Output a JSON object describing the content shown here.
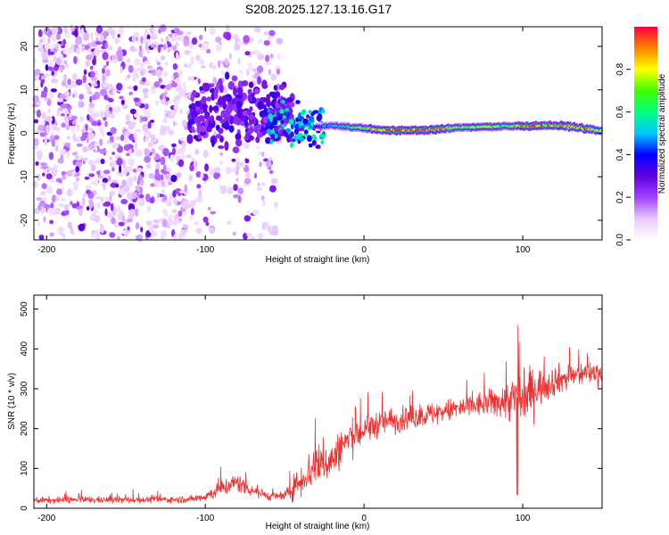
{
  "title": "S208.2025.127.13.16.G17",
  "chart_data": [
    {
      "type": "heatmap",
      "xlabel": "Height of straight line (km)",
      "ylabel": "Frequency (Hz)",
      "xlim": [
        -208,
        150
      ],
      "ylim": [
        -24.5,
        24.5
      ],
      "xticks": [
        -200,
        -100,
        0,
        100
      ],
      "yticks": [
        -20,
        -10,
        0,
        10,
        20
      ],
      "colorbar": {
        "label": "Normalized spectral amplitude",
        "range": [
          0,
          1
        ],
        "ticks": [
          0.0,
          0.2,
          0.4,
          0.6,
          0.8
        ],
        "colors": [
          "#ffffff",
          "#e8c8ff",
          "#a040ff",
          "#6000e0",
          "#0000ff",
          "#00c8ff",
          "#00ff80",
          "#40ff00",
          "#ffff00",
          "#ff8000",
          "#ff0040"
        ]
      },
      "ridge": {
        "x": [
          -30,
          -20,
          -10,
          0,
          10,
          20,
          30,
          40,
          50,
          60,
          70,
          80,
          90,
          100,
          110,
          120,
          130,
          140,
          150
        ],
        "frequency": [
          1.5,
          1.8,
          1.5,
          1.2,
          0.8,
          0.6,
          0.7,
          0.8,
          1.0,
          1.3,
          1.5,
          1.5,
          1.6,
          1.7,
          1.8,
          1.8,
          1.6,
          1.0,
          0.5
        ],
        "amplitude": [
          0.35,
          0.55,
          0.6,
          0.7,
          0.9,
          0.95,
          0.95,
          0.9,
          0.85,
          0.7,
          0.75,
          0.8,
          0.65,
          0.85,
          0.9,
          0.85,
          0.8,
          0.9,
          0.7
        ]
      }
    },
    {
      "type": "line",
      "xlabel": "Height of straight line (km)",
      "ylabel": "SNR (10 * v/v)",
      "xlim": [
        -208,
        150
      ],
      "ylim": [
        0,
        535
      ],
      "xticks": [
        -200,
        -100,
        0,
        100
      ],
      "yticks": [
        0,
        100,
        200,
        300,
        400,
        500
      ],
      "color": "#f03030",
      "trend": {
        "x": [
          -208,
          -110,
          -100,
          -90,
          -80,
          -70,
          -60,
          -50,
          -40,
          -30,
          -20,
          -10,
          0,
          10,
          20,
          40,
          60,
          80,
          90,
          100,
          110,
          120,
          130,
          140,
          150
        ],
        "mean": [
          20,
          22,
          30,
          50,
          65,
          45,
          30,
          30,
          70,
          110,
          120,
          175,
          195,
          215,
          220,
          235,
          250,
          265,
          270,
          280,
          305,
          320,
          330,
          340,
          340
        ],
        "spread": [
          10,
          10,
          15,
          25,
          30,
          20,
          12,
          15,
          50,
          70,
          55,
          55,
          45,
          40,
          35,
          35,
          35,
          40,
          60,
          90,
          55,
          45,
          40,
          35,
          35
        ]
      }
    }
  ]
}
